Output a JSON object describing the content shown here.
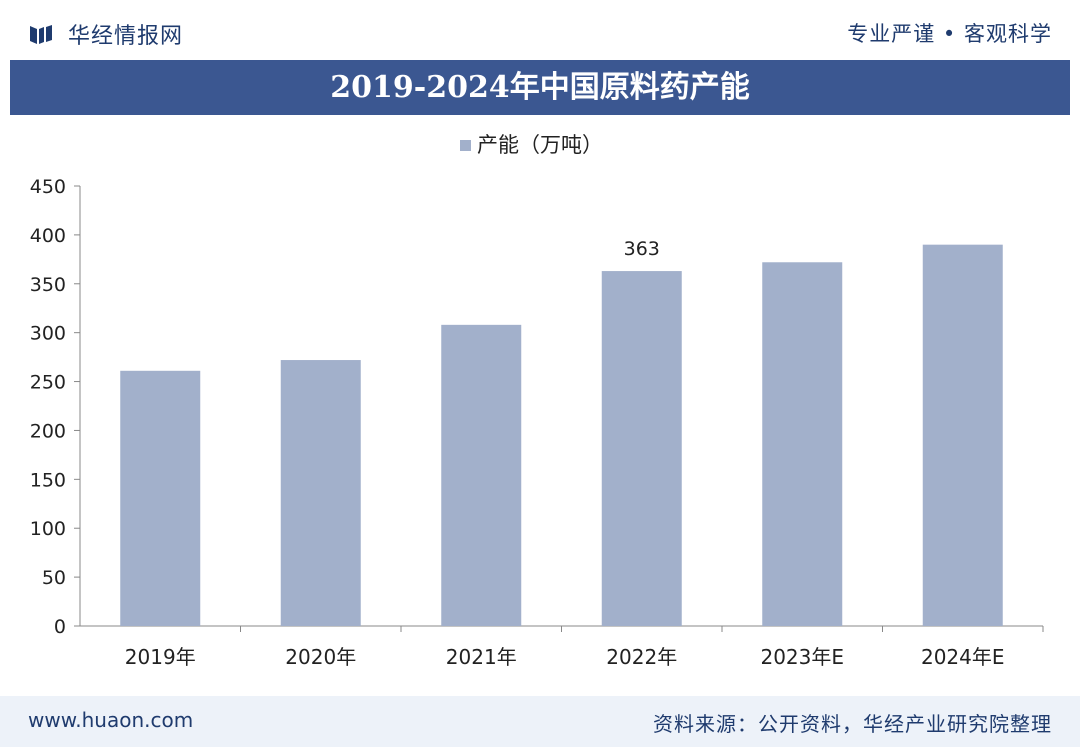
{
  "header": {
    "brand": "华经情报网",
    "slogan": "专业严谨 • 客观科学"
  },
  "chart_title": "2019-2024年中国原料药产能",
  "footer": {
    "website": "www.huaon.com",
    "source": "资料来源：公开资料，华经产业研究院整理"
  },
  "colors": {
    "header_text": "#1f3b6e",
    "title_bar": "#3b5791",
    "bar": "#a2b0cb",
    "footer_bg": "#edf2f9"
  },
  "chart_data": {
    "type": "bar",
    "title": "2019-2024年中国原料药产能",
    "categories": [
      "2019年",
      "2020年",
      "2021年",
      "2022年",
      "2023年E",
      "2024年E"
    ],
    "series": [
      {
        "name": "产能（万吨）",
        "values": [
          261,
          272,
          308,
          363,
          372,
          390
        ]
      }
    ],
    "data_labels": [
      null,
      null,
      null,
      "363",
      null,
      null
    ],
    "ylim": [
      0,
      450
    ],
    "yticks": [
      0,
      50,
      100,
      150,
      200,
      250,
      300,
      350,
      400,
      450
    ],
    "legend_position": "top-center",
    "grid": false
  }
}
